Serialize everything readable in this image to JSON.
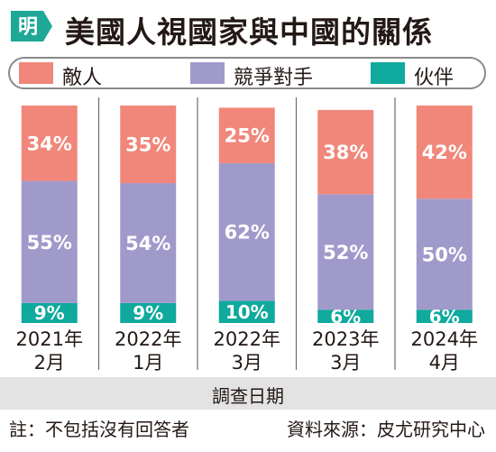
{
  "header": {
    "logo_text": "明",
    "title": "美國人視國家與中國的關係"
  },
  "colors": {
    "enemy": "#f0877a",
    "competitor": "#a09acb",
    "partner": "#0fa99d",
    "logo": "#1fa896",
    "divider": "#6d6d6d",
    "band": "#e3e3e3"
  },
  "chart_data": {
    "type": "bar",
    "stacked": true,
    "normalized": true,
    "categories": [
      {
        "line1": "2021年",
        "line2": "2月"
      },
      {
        "line1": "2022年",
        "line2": "1月"
      },
      {
        "line1": "2022年",
        "line2": "3月"
      },
      {
        "line1": "2023年",
        "line2": "3月"
      },
      {
        "line1": "2024年",
        "line2": "4月"
      }
    ],
    "series": [
      {
        "name": "伙伴",
        "key": "partner",
        "values": [
          9,
          9,
          10,
          6,
          6
        ],
        "labels": [
          "9%",
          "9%",
          "10%",
          "6%",
          "6%"
        ]
      },
      {
        "name": "競爭對手",
        "key": "competitor",
        "values": [
          55,
          54,
          62,
          52,
          50
        ],
        "labels": [
          "55%",
          "54%",
          "62%",
          "52%",
          "50%"
        ]
      },
      {
        "name": "敵人",
        "key": "enemy",
        "values": [
          34,
          35,
          25,
          38,
          42
        ],
        "labels": [
          "34%",
          "35%",
          "25%",
          "38%",
          "42%"
        ]
      }
    ],
    "legend": [
      "敵人",
      "競爭對手",
      "伙伴"
    ],
    "legend_position": "top",
    "xlabel": "調查日期",
    "ylim": [
      0,
      100
    ],
    "grid": false
  },
  "footer": {
    "note": "註：不包括沒有回答者",
    "source": "資料來源：皮尤研究中心"
  }
}
